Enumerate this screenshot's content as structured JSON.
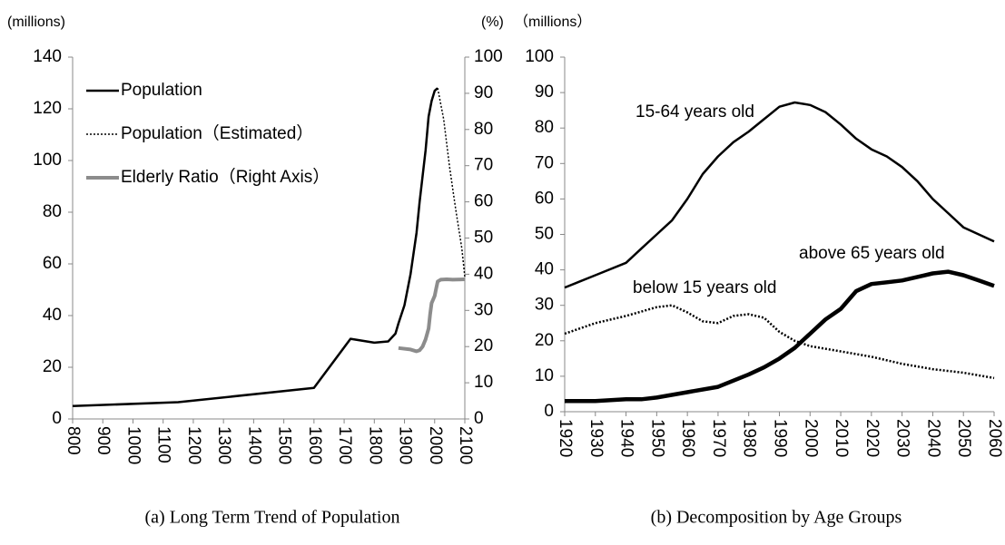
{
  "chart_data": [
    {
      "type": "line",
      "caption": "(a) Long Term Trend of Population",
      "y_label": "(millions)",
      "y2_label": "(%)",
      "xlim": [
        800,
        2100
      ],
      "xticks": [
        800,
        900,
        1000,
        1100,
        1200,
        1300,
        1400,
        1500,
        1600,
        1700,
        1800,
        1900,
        2000,
        2100
      ],
      "ylim": [
        0,
        140
      ],
      "yticks": [
        0,
        20,
        40,
        60,
        80,
        100,
        120,
        140
      ],
      "y2lim": [
        0,
        100
      ],
      "y2ticks": [
        0,
        10,
        20,
        30,
        40,
        50,
        60,
        70,
        80,
        90,
        100
      ],
      "legend": "upper left",
      "series": [
        {
          "name": "Population",
          "color": "#000000",
          "width": 2.5,
          "style": "solid",
          "x": [
            800,
            1150,
            1600,
            1721,
            1800,
            1846,
            1870,
            1880,
            1900,
            1920,
            1930,
            1940,
            1950,
            1960,
            1970,
            1980,
            1990,
            2000,
            2010
          ],
          "values": [
            5,
            6.5,
            12,
            31,
            29.5,
            30,
            33,
            37,
            44,
            56,
            64,
            72,
            84,
            94,
            104,
            117,
            123,
            127,
            128
          ]
        },
        {
          "name": "Population（Estimated）",
          "color": "#000000",
          "width": 1.5,
          "style": "dotted",
          "x": [
            2010,
            2030,
            2050,
            2070,
            2090,
            2100
          ],
          "values": [
            128,
            116,
            97,
            81,
            66,
            55
          ]
        },
        {
          "name": "Elderly Ratio（Right Axis）",
          "color": "#8c8c8c",
          "width": 4,
          "style": "solid",
          "axis": "y2",
          "x": [
            1880,
            1920,
            1940,
            1950,
            1960,
            1970,
            1980,
            1985,
            1990,
            2000,
            2005,
            2010,
            2020,
            2040,
            2060,
            2100
          ],
          "values": [
            19.6,
            19.2,
            18.7,
            19,
            20,
            22,
            25,
            29,
            32,
            34,
            36,
            38,
            38.5,
            38.6,
            38.5,
            38.6
          ]
        }
      ]
    },
    {
      "type": "line",
      "caption": "(b) Decomposition by Age Groups",
      "y_label": "（millions）",
      "xlim": [
        1920,
        2060
      ],
      "xticks": [
        1920,
        1930,
        1940,
        1950,
        1960,
        1970,
        1980,
        1990,
        2000,
        2010,
        2020,
        2030,
        2040,
        2050,
        2060
      ],
      "ylim": [
        0,
        100
      ],
      "yticks": [
        0,
        10,
        20,
        30,
        40,
        50,
        60,
        70,
        80,
        90,
        100
      ],
      "series": [
        {
          "name": "15-64 years old",
          "color": "#000000",
          "width": 2.5,
          "style": "solid",
          "x": [
            1920,
            1930,
            1940,
            1945,
            1950,
            1955,
            1960,
            1965,
            1970,
            1975,
            1980,
            1985,
            1990,
            1995,
            2000,
            2005,
            2010,
            2015,
            2020,
            2025,
            2030,
            2035,
            2040,
            2045,
            2050,
            2055,
            2060
          ],
          "values": [
            35,
            38.5,
            42,
            46,
            50,
            54,
            60,
            67,
            72,
            76,
            79,
            82.5,
            86,
            87.2,
            86.5,
            84.5,
            81,
            77,
            74,
            72,
            69,
            65,
            60,
            56,
            52,
            50,
            48
          ]
        },
        {
          "name": "below 15 years old",
          "color": "#000000",
          "width": 2.5,
          "style": "dotted",
          "x": [
            1920,
            1930,
            1940,
            1950,
            1955,
            1960,
            1965,
            1970,
            1975,
            1980,
            1985,
            1990,
            1995,
            2000,
            2010,
            2020,
            2030,
            2040,
            2050,
            2060
          ],
          "values": [
            22,
            25,
            27,
            29.5,
            30,
            28,
            25.5,
            25,
            27,
            27.5,
            26.5,
            22.5,
            20,
            18.5,
            17,
            15.5,
            13.5,
            12,
            11,
            9.5
          ]
        },
        {
          "name": "above 65 years old",
          "color": "#000000",
          "width": 4.5,
          "style": "solid",
          "x": [
            1920,
            1930,
            1940,
            1945,
            1950,
            1960,
            1970,
            1980,
            1985,
            1990,
            1995,
            2000,
            2005,
            2010,
            2015,
            2020,
            2025,
            2030,
            2035,
            2040,
            2045,
            2050,
            2055,
            2060
          ],
          "values": [
            3,
            3,
            3.5,
            3.5,
            4,
            5.5,
            7,
            10.5,
            12.5,
            15,
            18,
            22,
            26,
            29,
            34,
            36,
            36.5,
            37,
            38,
            39,
            39.5,
            38.5,
            37,
            35.5
          ]
        }
      ]
    }
  ]
}
